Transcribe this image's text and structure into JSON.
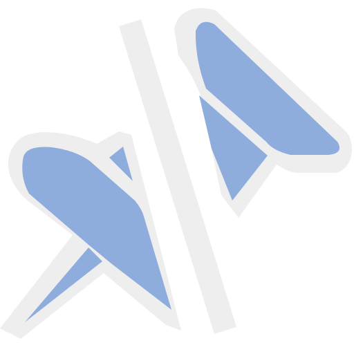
{
  "icon": {
    "name": "unpin-icon",
    "colors": {
      "background": "#ffffff",
      "outline": "#eeeeee",
      "pin_fill": "#8eaddd",
      "slash": "#eeeeee"
    }
  }
}
